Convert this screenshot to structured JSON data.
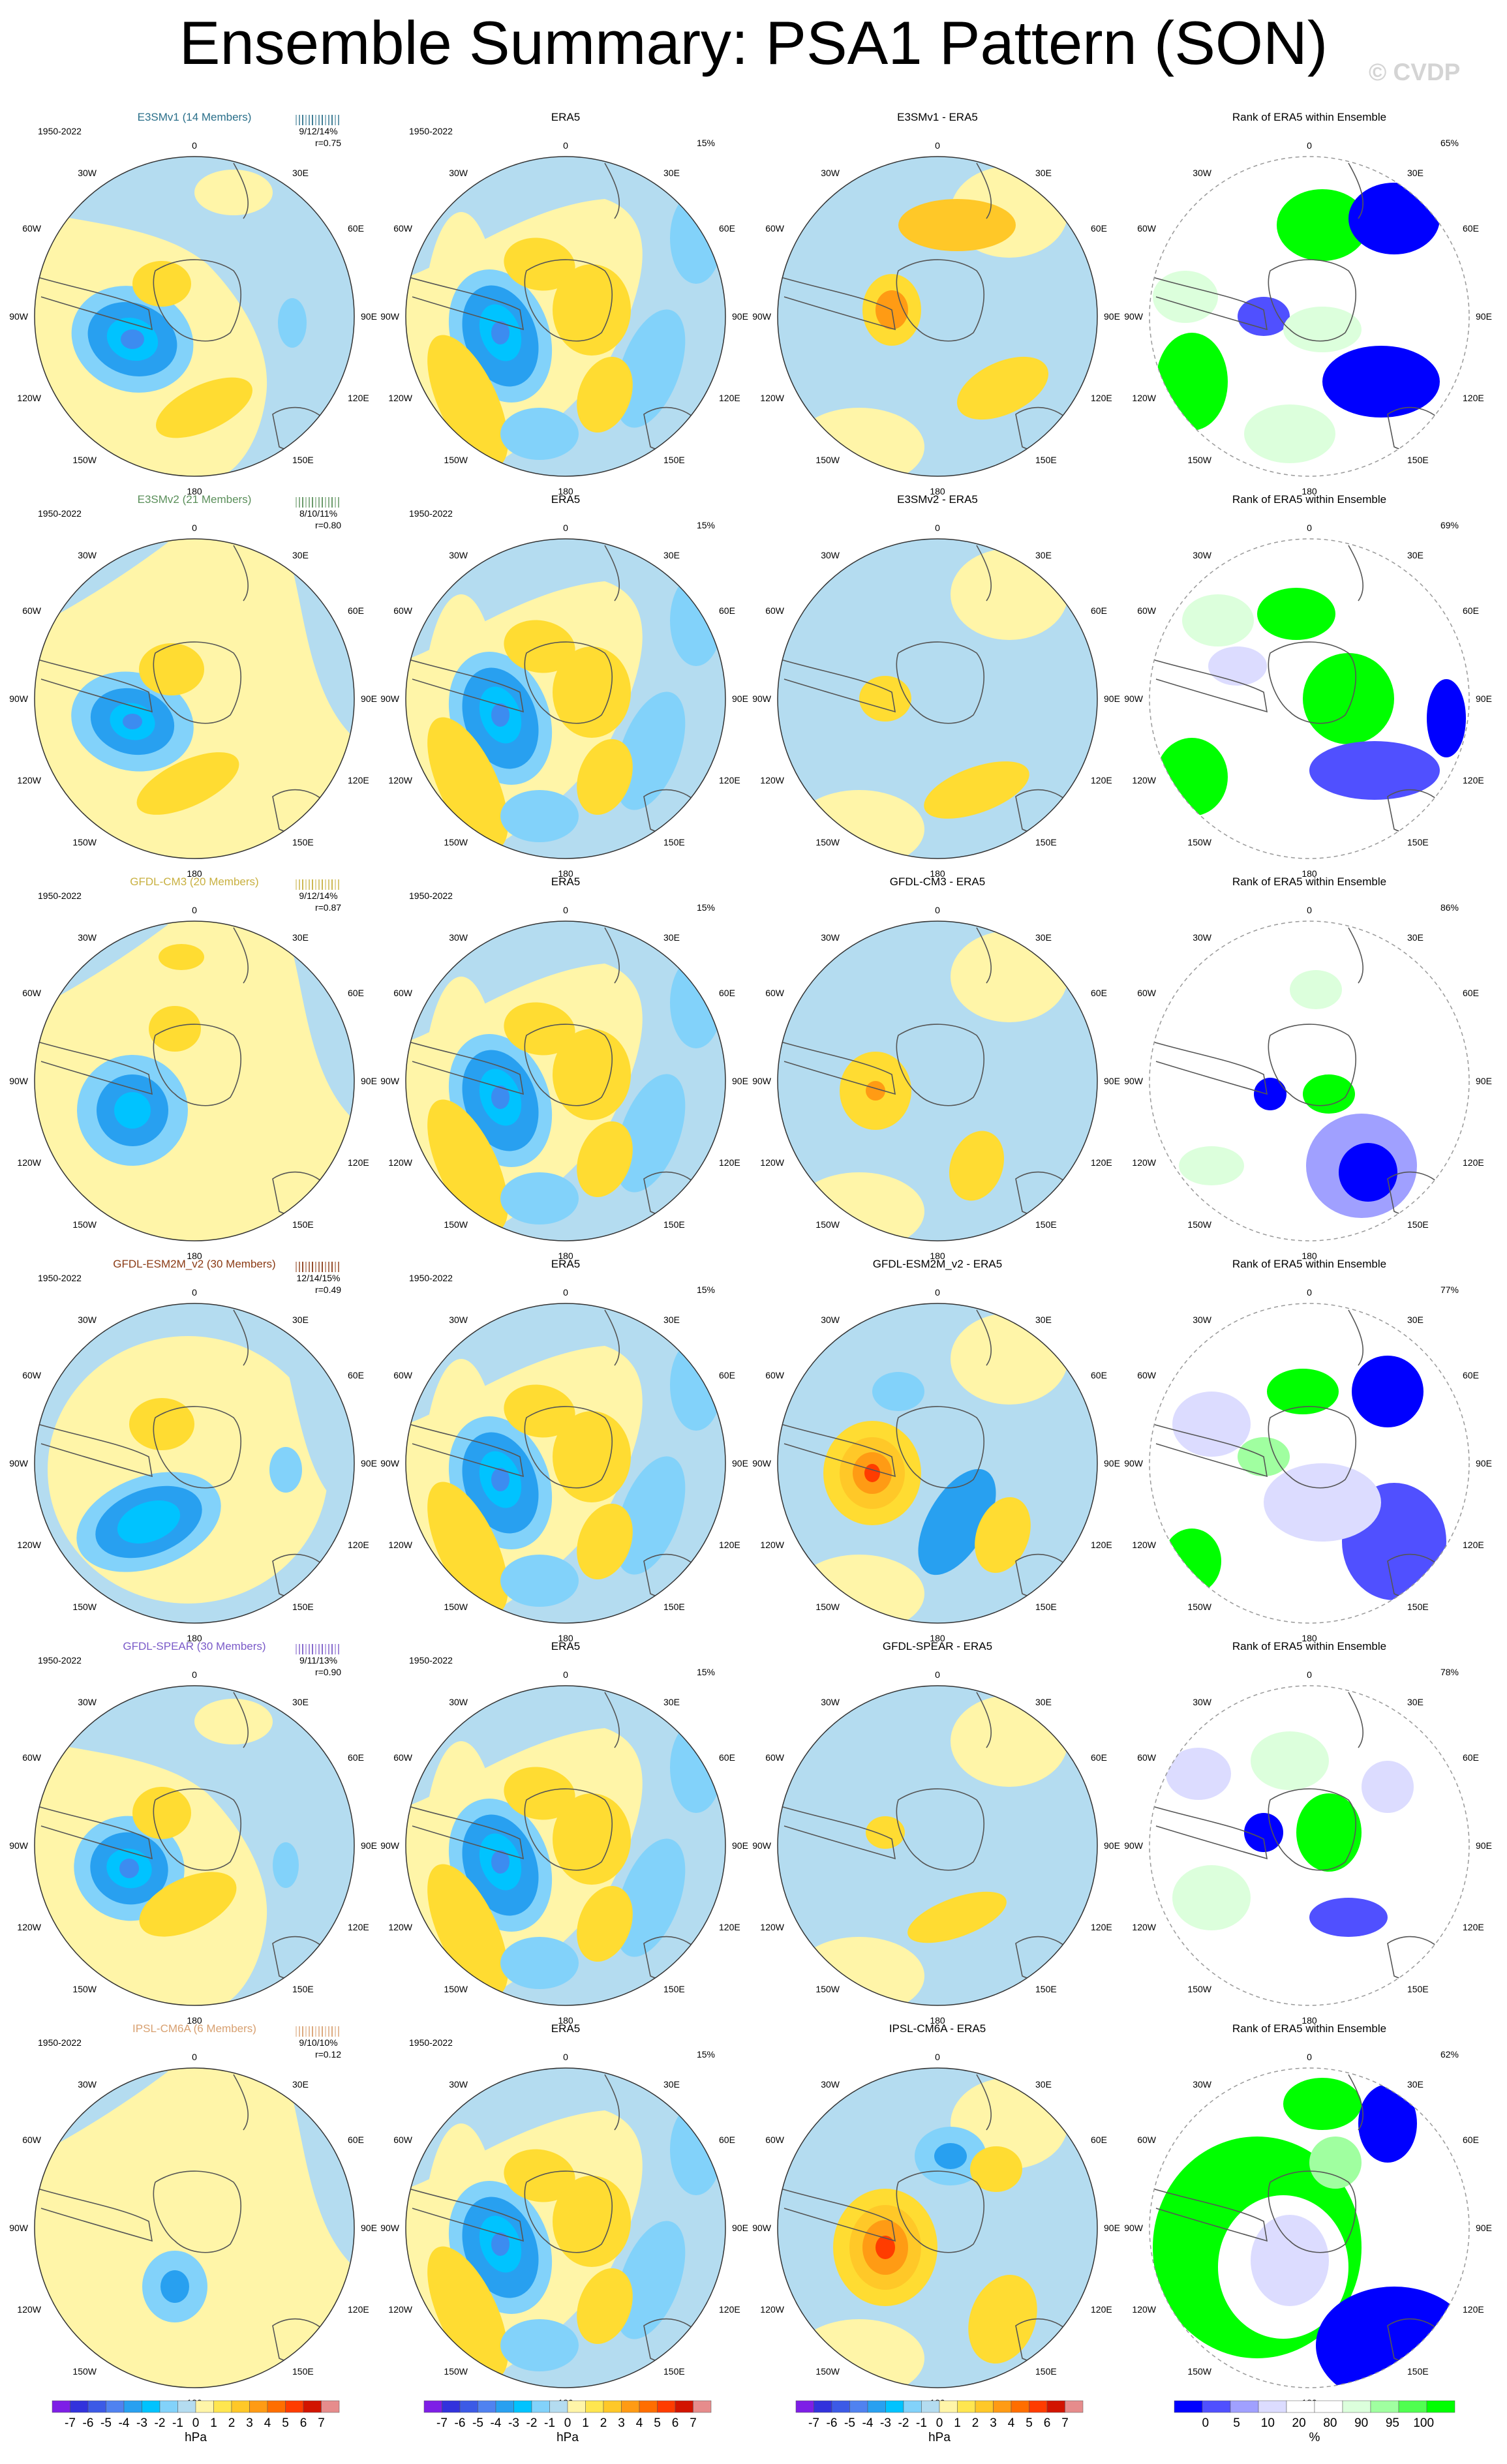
{
  "title": "Ensemble Summary: PSA1 Pattern (SON)",
  "copyright": "© CVDP",
  "period": "1950-2022",
  "obs_name": "ERA5",
  "rank_title": "Rank of ERA5 within Ensemble",
  "obs_pct": "15%",
  "lon_labels": {
    "n": "0",
    "ne": "30E",
    "e1": "60E",
    "e2": "90E",
    "e3": "120E",
    "se": "150E",
    "s": "180",
    "sw": "150W",
    "w3": "120W",
    "w2": "90W",
    "w1": "60W",
    "nw": "30W"
  },
  "rows": [
    {
      "model": "E3SMv1 (14 Members)",
      "model_color": "#2a6f8a",
      "stats": "9/12/14%",
      "corr": "r=0.75",
      "diff_title": "E3SMv1 - ERA5",
      "rank_pct": "65%"
    },
    {
      "model": "E3SMv2 (21 Members)",
      "model_color": "#5a8f5a",
      "stats": "8/10/11%",
      "corr": "r=0.80",
      "diff_title": "E3SMv2 - ERA5",
      "rank_pct": "69%"
    },
    {
      "model": "GFDL-CM3 (20 Members)",
      "model_color": "#c8b040",
      "stats": "9/12/14%",
      "corr": "r=0.87",
      "diff_title": "GFDL-CM3 - ERA5",
      "rank_pct": "86%"
    },
    {
      "model": "GFDL-ESM2M_v2 (30 Members)",
      "model_color": "#8a3a14",
      "stats": "12/14/15%",
      "corr": "r=0.49",
      "diff_title": "GFDL-ESM2M_v2 - ERA5",
      "rank_pct": "77%"
    },
    {
      "model": "GFDL-SPEAR (30 Members)",
      "model_color": "#7a5ac8",
      "stats": "9/11/13%",
      "corr": "r=0.90",
      "diff_title": "GFDL-SPEAR - ERA5",
      "rank_pct": "78%"
    },
    {
      "model": "IPSL-CM6A (6 Members)",
      "model_color": "#d8a070",
      "stats": "9/10/10%",
      "corr": "r=0.12",
      "diff_title": "IPSL-CM6A - ERA5",
      "rank_pct": "62%"
    }
  ],
  "colorbar_hpa": {
    "colors": [
      "#7e1ee6",
      "#3232dc",
      "#3c5ae6",
      "#5082f0",
      "#28a0f0",
      "#00c3ff",
      "#82d2fa",
      "#b4dcf0",
      "#fff5a8",
      "#ffe650",
      "#ffc828",
      "#ff9b14",
      "#ff6e00",
      "#ff3c00",
      "#d21400",
      "#e68c8c"
    ],
    "labels": [
      "-7",
      "-6",
      "-5",
      "-4",
      "-3",
      "-2",
      "-1",
      "0",
      "1",
      "2",
      "3",
      "4",
      "5",
      "6",
      "7"
    ],
    "unit": "hPa"
  },
  "colorbar_rank": {
    "colors": [
      "#0000ff",
      "#5050ff",
      "#a0a0ff",
      "#dcdcff",
      "#ffffff",
      "#ffffff",
      "#dcffdc",
      "#a0ffa0",
      "#50ff50",
      "#00ff00"
    ],
    "labels": [
      "0",
      "5",
      "10",
      "20",
      "80",
      "90",
      "95",
      "100"
    ],
    "unit": "%"
  }
}
